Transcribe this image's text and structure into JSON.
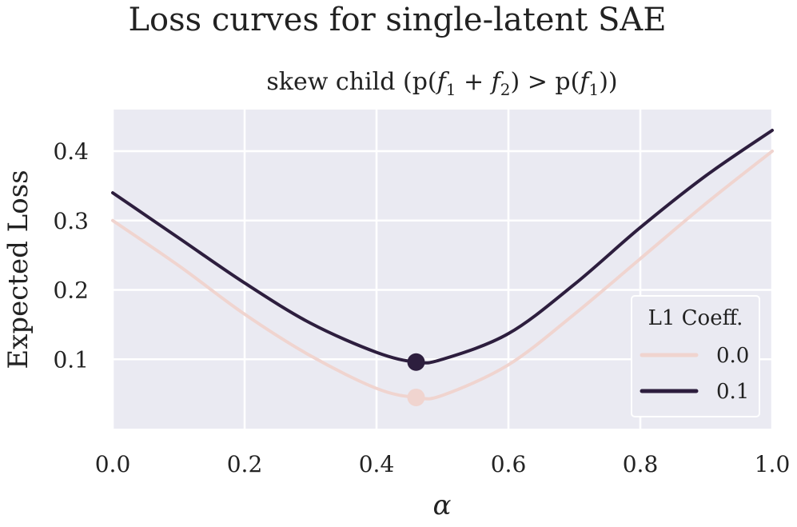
{
  "chart_data": {
    "type": "line",
    "title": "Loss curves for single-latent SAE",
    "subtitle": {
      "prefix": "skew child (p(",
      "f1": "f",
      "f1_sub": "1",
      "plus": " + ",
      "f2": "f",
      "f2_sub": "2",
      "mid": ") > p(",
      "f3": "f",
      "f3_sub": "1",
      "suffix": "))"
    },
    "xlabel": "α",
    "ylabel": "Expected Loss",
    "xlim": [
      0.0,
      1.0
    ],
    "ylim": [
      0.0,
      0.46
    ],
    "xticks": [
      0.0,
      0.2,
      0.4,
      0.6,
      0.8,
      1.0
    ],
    "xtick_labels": [
      "0.0",
      "0.2",
      "0.4",
      "0.6",
      "0.8",
      "1.0"
    ],
    "yticks": [
      0.1,
      0.2,
      0.3,
      0.4
    ],
    "ytick_labels": [
      "0.1",
      "0.2",
      "0.3",
      "0.4"
    ],
    "grid": true,
    "legend": {
      "title": "L1 Coeff.",
      "position": "lower-right",
      "entries": [
        "0.0",
        "0.1"
      ]
    },
    "series": [
      {
        "name": "0.0",
        "color": "#f0d4cf",
        "x": [
          0.0,
          0.1,
          0.2,
          0.3,
          0.4,
          0.46,
          0.5,
          0.6,
          0.7,
          0.8,
          0.9,
          1.0
        ],
        "y": [
          0.3,
          0.235,
          0.165,
          0.105,
          0.058,
          0.045,
          0.048,
          0.092,
          0.165,
          0.245,
          0.325,
          0.4
        ],
        "minimum": {
          "x": 0.46,
          "y": 0.045
        }
      },
      {
        "name": "0.1",
        "color": "#2d1e3e",
        "x": [
          0.0,
          0.1,
          0.2,
          0.3,
          0.4,
          0.46,
          0.5,
          0.6,
          0.7,
          0.8,
          0.9,
          1.0
        ],
        "y": [
          0.34,
          0.275,
          0.21,
          0.152,
          0.11,
          0.096,
          0.1,
          0.137,
          0.208,
          0.29,
          0.365,
          0.43
        ],
        "minimum": {
          "x": 0.46,
          "y": 0.096
        }
      }
    ]
  }
}
